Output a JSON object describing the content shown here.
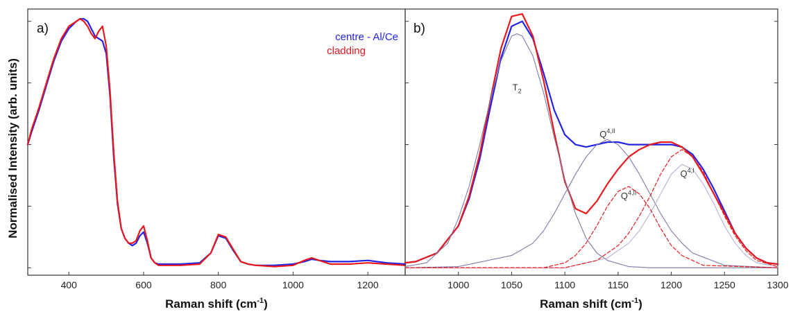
{
  "ylabel": "Normalised Intensity (arb. units)",
  "chart_data": [
    {
      "type": "line",
      "panel_label": "a)",
      "title": "",
      "xlabel": "Raman shift (cm",
      "xlabel_sup": "-1",
      "xlabel_close": ")",
      "ylabel": "Normalised Intensity (arb. units)",
      "xlim": [
        290,
        1300
      ],
      "ylim": [
        -0.03,
        1.05
      ],
      "xticks": [
        400,
        600,
        800,
        1000,
        1200
      ],
      "yticks": [
        0,
        0.25,
        0.5,
        0.75,
        1.0
      ],
      "show_y_tick_labels": false,
      "grid": false,
      "legend_position": "top-right",
      "series": [
        {
          "name": "centre - Al/Ce",
          "color": "#2323e8",
          "x": [
            290,
            300,
            320,
            340,
            360,
            380,
            400,
            420,
            430,
            440,
            450,
            460,
            470,
            480,
            490,
            500,
            510,
            520,
            530,
            540,
            550,
            560,
            570,
            580,
            590,
            600,
            610,
            620,
            630,
            640,
            650,
            700,
            750,
            780,
            800,
            820,
            840,
            860,
            880,
            900,
            950,
            1000,
            1030,
            1050,
            1070,
            1100,
            1150,
            1200,
            1250,
            1300
          ],
          "y": [
            0.5,
            0.55,
            0.64,
            0.74,
            0.84,
            0.92,
            0.97,
            1.0,
            1.01,
            1.01,
            1.0,
            0.97,
            0.94,
            0.93,
            0.92,
            0.87,
            0.7,
            0.45,
            0.26,
            0.16,
            0.12,
            0.1,
            0.09,
            0.1,
            0.13,
            0.145,
            0.1,
            0.04,
            0.02,
            0.015,
            0.015,
            0.015,
            0.02,
            0.06,
            0.13,
            0.12,
            0.07,
            0.025,
            0.015,
            0.01,
            0.01,
            0.015,
            0.025,
            0.035,
            0.03,
            0.025,
            0.025,
            0.03,
            0.02,
            0.015
          ]
        },
        {
          "name": "cladding",
          "color": "#e8191c",
          "x": [
            290,
            300,
            320,
            340,
            360,
            380,
            400,
            420,
            430,
            440,
            450,
            460,
            470,
            480,
            490,
            500,
            510,
            520,
            530,
            540,
            550,
            560,
            570,
            580,
            590,
            600,
            610,
            620,
            630,
            640,
            650,
            700,
            750,
            780,
            800,
            820,
            840,
            860,
            880,
            900,
            950,
            1000,
            1030,
            1050,
            1070,
            1100,
            1150,
            1200,
            1250,
            1300
          ],
          "y": [
            0.5,
            0.56,
            0.65,
            0.75,
            0.85,
            0.93,
            0.98,
            1.0,
            1.01,
            1.0,
            0.98,
            0.95,
            0.93,
            0.96,
            0.98,
            0.9,
            0.72,
            0.47,
            0.27,
            0.16,
            0.12,
            0.1,
            0.1,
            0.11,
            0.15,
            0.17,
            0.11,
            0.04,
            0.02,
            0.01,
            0.01,
            0.01,
            0.015,
            0.06,
            0.135,
            0.125,
            0.075,
            0.025,
            0.015,
            0.01,
            0.005,
            0.01,
            0.03,
            0.04,
            0.03,
            0.015,
            0.015,
            0.02,
            0.015,
            0.01
          ]
        }
      ]
    },
    {
      "type": "line",
      "panel_label": "b)",
      "title": "",
      "xlabel": "Raman shift (cm",
      "xlabel_sup": "-1",
      "xlabel_close": ")",
      "xlim": [
        950,
        1300
      ],
      "ylim": [
        -0.03,
        1.05
      ],
      "xticks": [
        1000,
        1050,
        1100,
        1150,
        1200,
        1250,
        1300
      ],
      "yticks": [
        0,
        0.25,
        0.5,
        0.75,
        1.0
      ],
      "show_y_tick_labels": false,
      "grid": false,
      "annotations": [
        {
          "text": "T",
          "sub": "2",
          "x": 1055,
          "y": 0.72
        },
        {
          "text": "Q",
          "sup": "4,II",
          "x": 1140,
          "y": 0.53
        },
        {
          "text": "Q",
          "sup": "4,II",
          "x": 1160,
          "y": 0.28
        },
        {
          "text": "Q",
          "sup": "4,I",
          "x": 1215,
          "y": 0.37
        }
      ],
      "series": [
        {
          "name": "centre - Al/Ce",
          "style": "solid",
          "color": "#2323e8",
          "x": [
            950,
            960,
            980,
            1000,
            1010,
            1020,
            1030,
            1040,
            1050,
            1060,
            1070,
            1080,
            1090,
            1100,
            1110,
            1120,
            1130,
            1140,
            1150,
            1160,
            1170,
            1180,
            1190,
            1200,
            1210,
            1220,
            1230,
            1240,
            1250,
            1260,
            1270,
            1280,
            1290,
            1300
          ],
          "y": [
            0.02,
            0.025,
            0.06,
            0.17,
            0.28,
            0.44,
            0.65,
            0.85,
            0.98,
            1.0,
            0.93,
            0.79,
            0.64,
            0.54,
            0.5,
            0.49,
            0.5,
            0.51,
            0.51,
            0.5,
            0.5,
            0.5,
            0.5,
            0.5,
            0.49,
            0.46,
            0.4,
            0.32,
            0.23,
            0.14,
            0.08,
            0.04,
            0.02,
            0.015
          ]
        },
        {
          "name": "cladding",
          "style": "solid",
          "color": "#e8191c",
          "x": [
            950,
            960,
            980,
            1000,
            1010,
            1020,
            1030,
            1040,
            1050,
            1060,
            1070,
            1080,
            1090,
            1100,
            1110,
            1120,
            1130,
            1140,
            1150,
            1160,
            1170,
            1180,
            1190,
            1200,
            1210,
            1220,
            1230,
            1240,
            1250,
            1260,
            1270,
            1280,
            1290,
            1300
          ],
          "y": [
            0.02,
            0.025,
            0.06,
            0.17,
            0.29,
            0.46,
            0.68,
            0.89,
            1.02,
            1.03,
            0.94,
            0.76,
            0.55,
            0.35,
            0.24,
            0.22,
            0.27,
            0.34,
            0.4,
            0.45,
            0.48,
            0.5,
            0.51,
            0.51,
            0.49,
            0.45,
            0.38,
            0.3,
            0.22,
            0.14,
            0.08,
            0.04,
            0.02,
            0.015
          ]
        },
        {
          "name": "",
          "style": "thin",
          "color": "#7d7aa8",
          "x": [
            950,
            970,
            990,
            1000,
            1010,
            1020,
            1030,
            1040,
            1050,
            1055,
            1060,
            1070,
            1080,
            1090,
            1100,
            1110,
            1120,
            1130,
            1140,
            1160,
            1180,
            1200,
            1250,
            1300
          ],
          "y": [
            0.005,
            0.02,
            0.1,
            0.2,
            0.33,
            0.5,
            0.68,
            0.84,
            0.94,
            0.95,
            0.94,
            0.86,
            0.71,
            0.53,
            0.36,
            0.22,
            0.12,
            0.06,
            0.03,
            0.005,
            0.0,
            0.0,
            0.0,
            0.0
          ]
        },
        {
          "name": "",
          "style": "thin",
          "color": "#7d7aa8",
          "x": [
            950,
            1000,
            1050,
            1070,
            1080,
            1090,
            1100,
            1110,
            1120,
            1130,
            1140,
            1150,
            1160,
            1170,
            1180,
            1190,
            1200,
            1210,
            1220,
            1250,
            1300
          ],
          "y": [
            0.0,
            0.005,
            0.05,
            0.1,
            0.15,
            0.22,
            0.3,
            0.38,
            0.45,
            0.5,
            0.52,
            0.5,
            0.45,
            0.38,
            0.3,
            0.22,
            0.15,
            0.1,
            0.06,
            0.01,
            0.0
          ]
        },
        {
          "name": "",
          "style": "thin-light",
          "color": "#b4b2d2",
          "x": [
            950,
            1100,
            1140,
            1160,
            1170,
            1180,
            1190,
            1200,
            1210,
            1220,
            1230,
            1240,
            1250,
            1260,
            1270,
            1280,
            1300
          ],
          "y": [
            0.0,
            0.0,
            0.04,
            0.1,
            0.15,
            0.22,
            0.3,
            0.38,
            0.42,
            0.4,
            0.34,
            0.26,
            0.17,
            0.1,
            0.05,
            0.02,
            0.005
          ]
        },
        {
          "name": "",
          "style": "dashed",
          "color": "#e8191c",
          "x": [
            950,
            1080,
            1100,
            1110,
            1120,
            1130,
            1140,
            1150,
            1160,
            1170,
            1180,
            1190,
            1200,
            1210,
            1230,
            1300
          ],
          "y": [
            0.0,
            0.0,
            0.02,
            0.05,
            0.1,
            0.17,
            0.25,
            0.31,
            0.33,
            0.3,
            0.24,
            0.16,
            0.09,
            0.05,
            0.01,
            0.0
          ]
        },
        {
          "name": "",
          "style": "dashed",
          "color": "#e8191c",
          "x": [
            950,
            1100,
            1130,
            1150,
            1160,
            1170,
            1180,
            1190,
            1200,
            1210,
            1220,
            1230,
            1240,
            1250,
            1260,
            1270,
            1280,
            1300
          ],
          "y": [
            0.0,
            0.0,
            0.03,
            0.09,
            0.14,
            0.21,
            0.29,
            0.38,
            0.45,
            0.48,
            0.45,
            0.39,
            0.3,
            0.21,
            0.13,
            0.07,
            0.03,
            0.005
          ]
        }
      ]
    }
  ]
}
